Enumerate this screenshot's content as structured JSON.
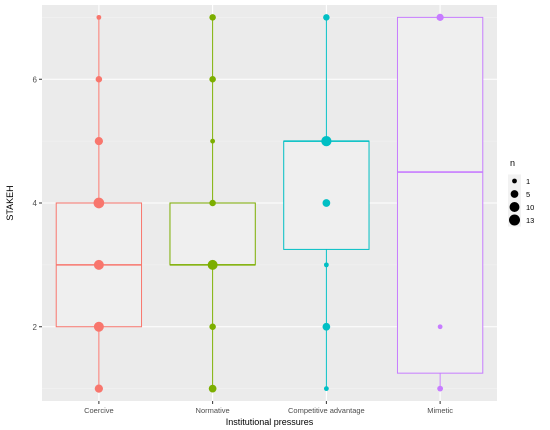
{
  "chart_data": {
    "type": "boxplot",
    "xlabel": "Institutional pressures",
    "ylabel": "STAKEH",
    "categories": [
      "Coercive",
      "Normative",
      "Competitive advantage",
      "Mimetic"
    ],
    "y_ticks": [
      2,
      4,
      6
    ],
    "ylim": [
      0.8,
      7.2
    ],
    "grid": true,
    "legend": {
      "title": "n",
      "position": "right",
      "sizes": [
        1,
        5,
        10,
        13
      ],
      "labels": [
        "1",
        "5",
        "10",
        "13"
      ]
    },
    "series": [
      {
        "category": "Coercive",
        "color": "#F8766D",
        "box": {
          "q1": 2,
          "median": 3,
          "q3": 4,
          "whisker_low": 1,
          "whisker_high": 7
        },
        "points": [
          {
            "y": 1,
            "n": 6
          },
          {
            "y": 2,
            "n": 10
          },
          {
            "y": 3,
            "n": 10
          },
          {
            "y": 4,
            "n": 12
          },
          {
            "y": 5,
            "n": 6
          },
          {
            "y": 6,
            "n": 3
          },
          {
            "y": 7,
            "n": 1
          }
        ]
      },
      {
        "category": "Normative",
        "color": "#7CAE00",
        "box": {
          "q1": 3,
          "median": 3,
          "q3": 4,
          "whisker_low": 1,
          "whisker_high": 7
        },
        "points": [
          {
            "y": 1,
            "n": 5
          },
          {
            "y": 2,
            "n": 3
          },
          {
            "y": 3,
            "n": 10
          },
          {
            "y": 4,
            "n": 3
          },
          {
            "y": 5,
            "n": 1
          },
          {
            "y": 6,
            "n": 3
          },
          {
            "y": 7,
            "n": 3
          }
        ]
      },
      {
        "category": "Competitive advantage",
        "color": "#00BFC4",
        "box": {
          "q1": 3.25,
          "median": 5,
          "q3": 5,
          "whisker_low": 1,
          "whisker_high": 7
        },
        "points": [
          {
            "y": 1,
            "n": 1
          },
          {
            "y": 2,
            "n": 5
          },
          {
            "y": 3,
            "n": 1
          },
          {
            "y": 4,
            "n": 5
          },
          {
            "y": 5,
            "n": 11
          },
          {
            "y": 7,
            "n": 3
          }
        ]
      },
      {
        "category": "Mimetic",
        "color": "#C77CFF",
        "box": {
          "q1": 1.25,
          "median": 4.5,
          "q3": 7,
          "whisker_low": 1,
          "whisker_high": 7
        },
        "points": [
          {
            "y": 1,
            "n": 2
          },
          {
            "y": 2,
            "n": 1
          },
          {
            "y": 7,
            "n": 4
          }
        ]
      }
    ]
  }
}
